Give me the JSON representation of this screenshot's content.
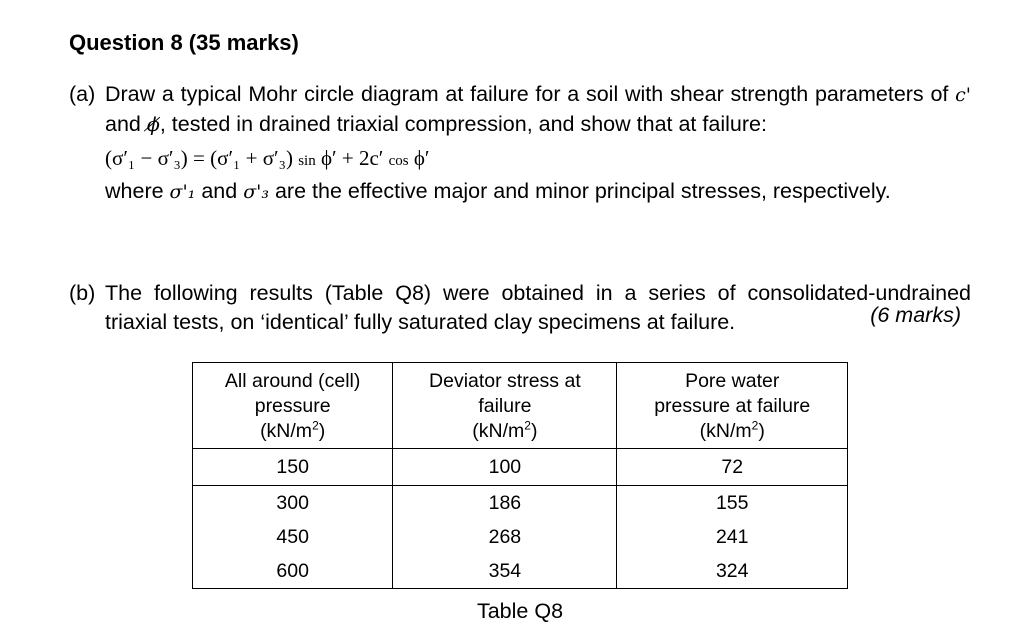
{
  "question": {
    "title": "Question 8 (35 marks)"
  },
  "part_a": {
    "label": "(a)",
    "text_1": "Draw a typical Mohr circle diagram at failure for a soil with shear strength parameters of ",
    "c_symbol": "c'",
    "text_2": " and ",
    "phi_symbol": "ϕ̸",
    "text_3": ", tested in drained triaxial compression, and show that at failure:",
    "equation_lhs": "(σ′₁ − σ′₃) = (σ′₁ + σ′₃) ",
    "equation_sin": "sin",
    "equation_mid": " ϕ′ + 2c′ ",
    "equation_cos": "cos",
    "equation_end": " ϕ′",
    "where_1": "where ",
    "sigma1": "σ'₁",
    "where_2": " and ",
    "sigma3": "σ'₃",
    "where_3": " are the effective major and minor principal stresses, respectively.",
    "marks": "(6 marks)"
  },
  "part_b": {
    "label": "(b)",
    "text": "The following results (Table Q8) were obtained in a series of consolidated-undrained triaxial tests, on ‘identical’ fully saturated clay specimens at failure."
  },
  "table": {
    "headers": [
      {
        "line1": "All around (cell)",
        "line2": "pressure",
        "unit": "(kN/m",
        "sup": "2",
        "close": ")"
      },
      {
        "line1": "Deviator stress at",
        "line2": "failure",
        "unit": "(kN/m",
        "sup": "2",
        "close": ")"
      },
      {
        "line1": "Pore water",
        "line2": "pressure at failure",
        "unit": "(kN/m",
        "sup": "2",
        "close": ")"
      }
    ],
    "rows": [
      [
        "150",
        "100",
        "72"
      ],
      [
        "300",
        "186",
        "155"
      ],
      [
        "450",
        "268",
        "241"
      ],
      [
        "600",
        "354",
        "324"
      ]
    ],
    "caption": "Table Q8"
  }
}
